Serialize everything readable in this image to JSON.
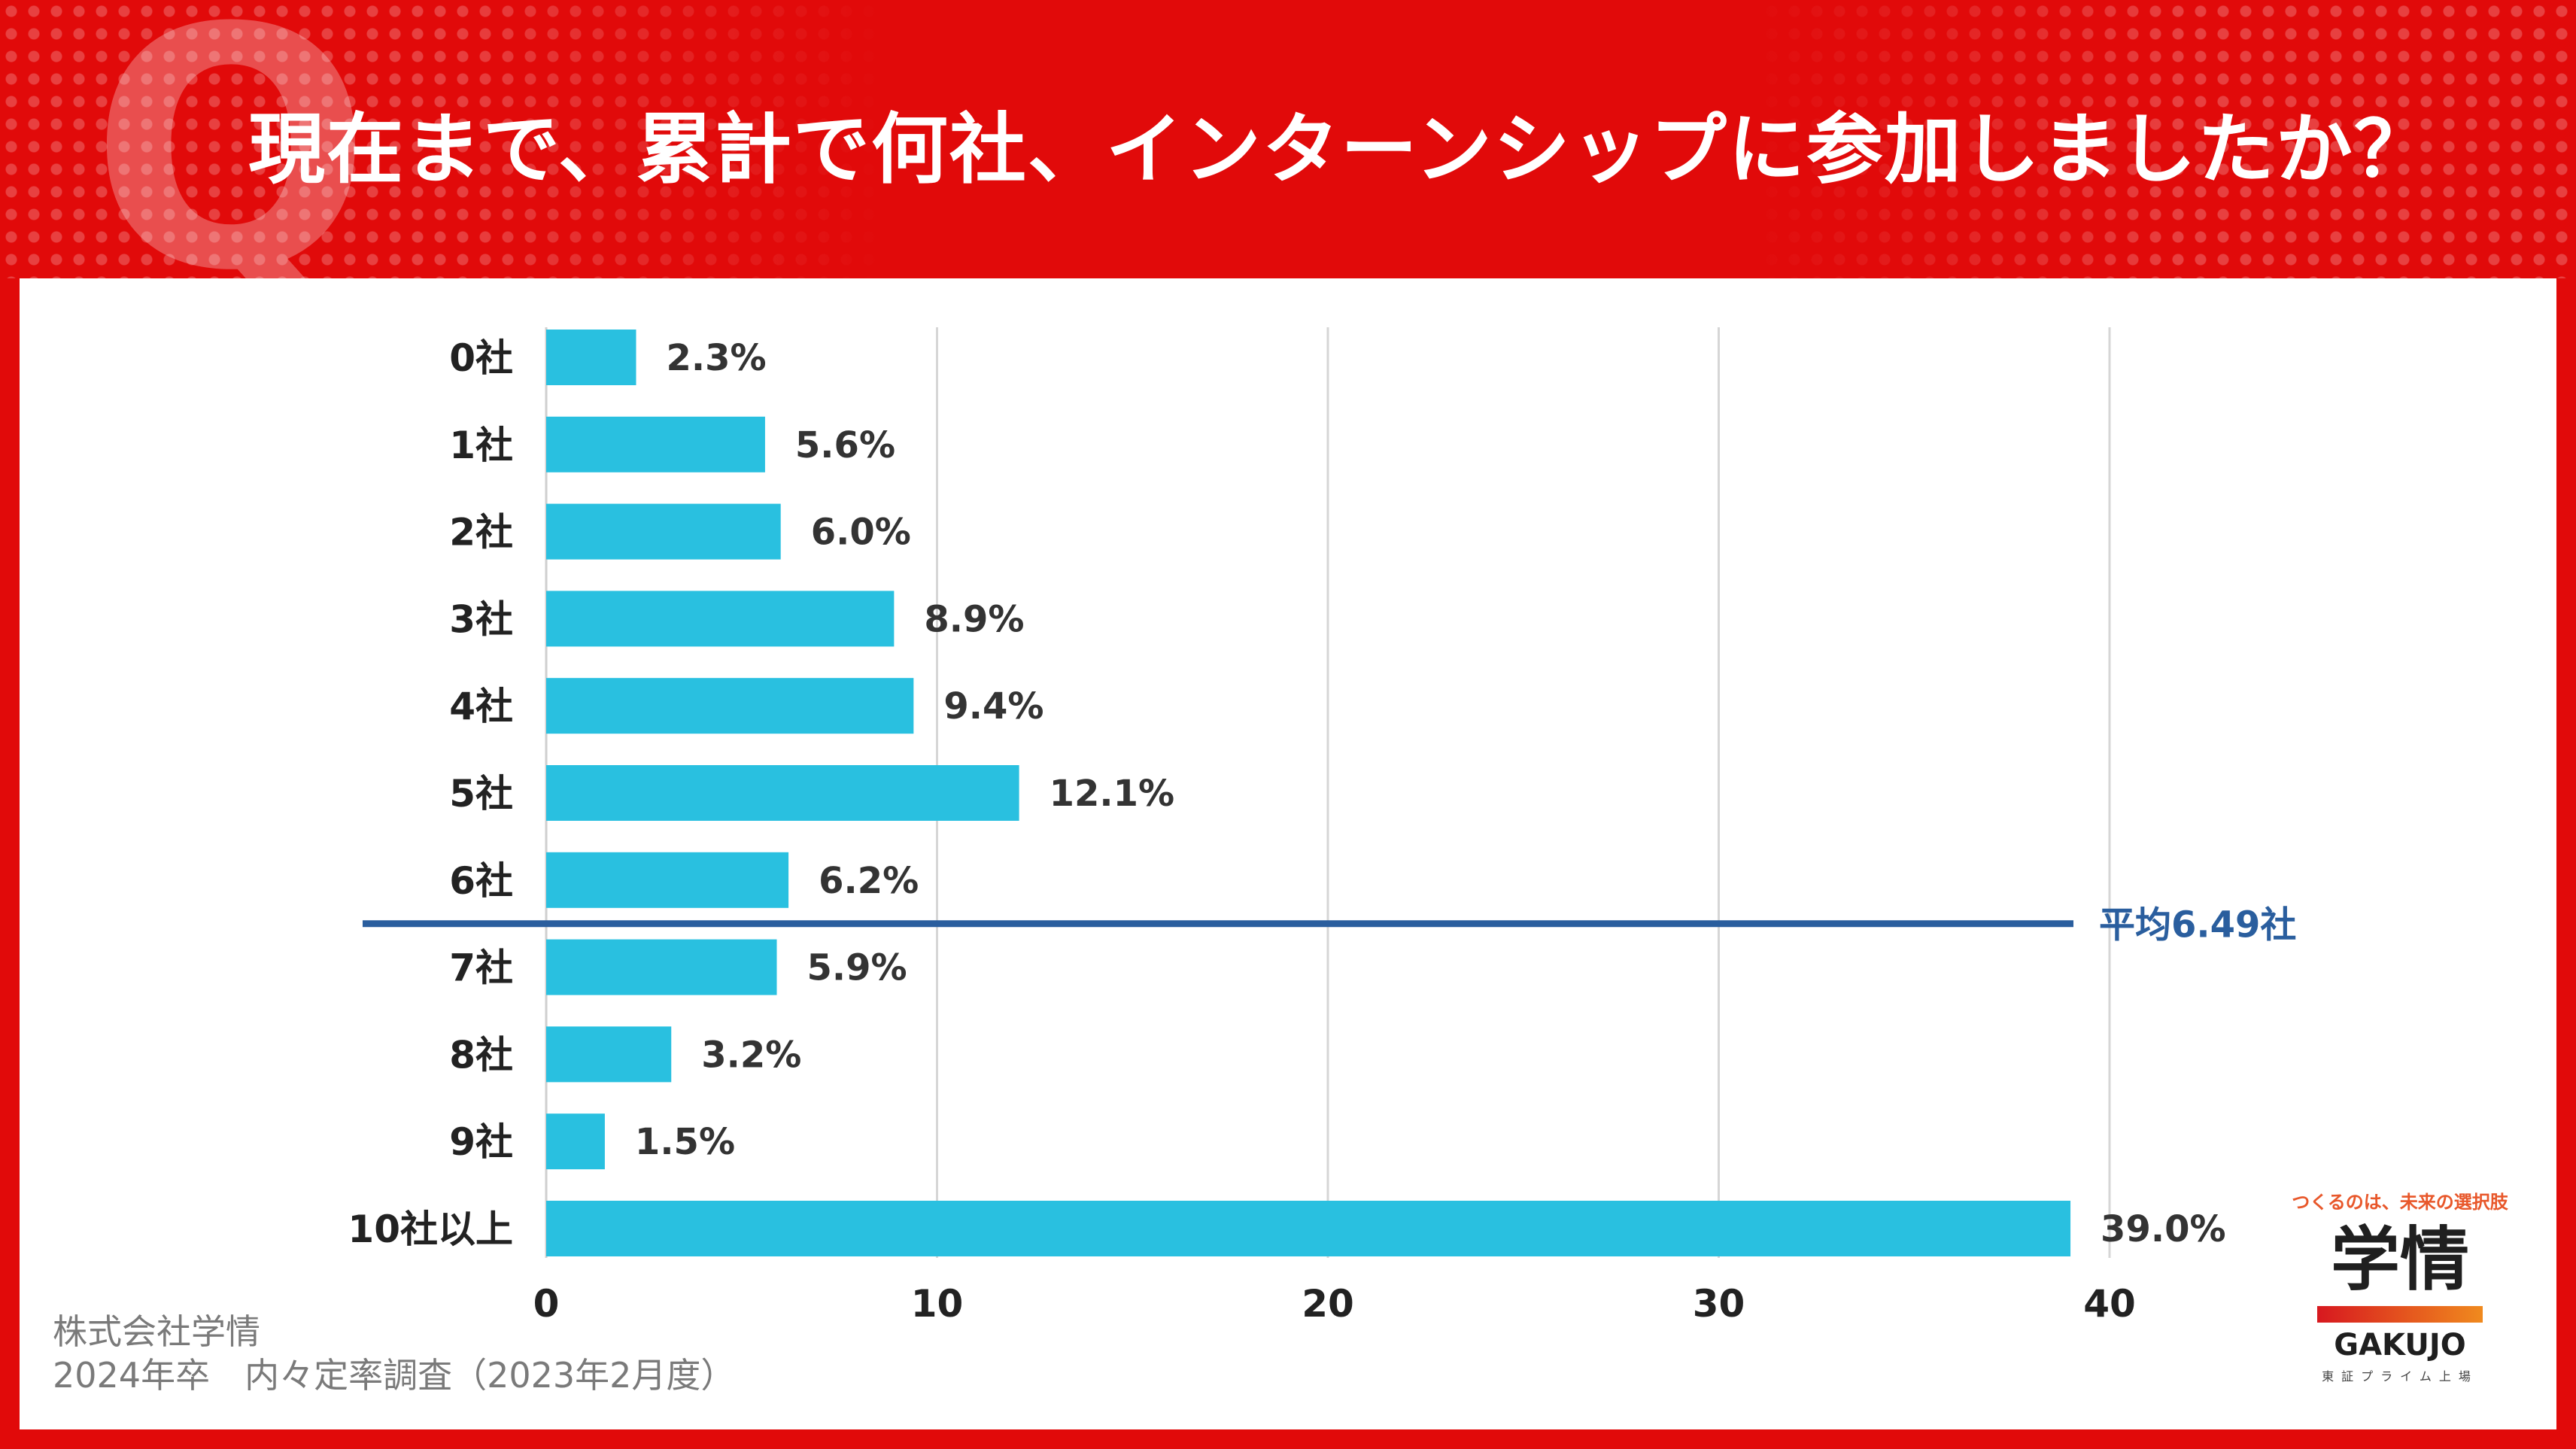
{
  "header": {
    "q_mark": "Q",
    "title": "現在まで、累計で何社、インターンシップに参加しましたか？"
  },
  "colors": {
    "background": "#e10a0a",
    "bar": "#29c0e0",
    "average_line": "#2a5e9e",
    "text": "#222222"
  },
  "chart_data": {
    "type": "bar",
    "orientation": "horizontal",
    "title": "現在まで、累計で何社、インターンシップに参加しましたか？",
    "categories": [
      "0社",
      "1社",
      "2社",
      "3社",
      "4社",
      "5社",
      "6社",
      "7社",
      "8社",
      "9社",
      "10社以上"
    ],
    "values": [
      2.3,
      5.6,
      6.0,
      8.9,
      9.4,
      12.1,
      6.2,
      5.9,
      3.2,
      1.5,
      39.0
    ],
    "value_labels": [
      "2.3%",
      "5.6%",
      "6.0%",
      "8.9%",
      "9.4%",
      "12.1%",
      "6.2%",
      "5.9%",
      "3.2%",
      "1.5%",
      "39.0%"
    ],
    "xlim": [
      0,
      40
    ],
    "xticks": [
      0,
      10,
      20,
      30,
      40
    ],
    "grid": true,
    "average": {
      "label": "平均6.49社",
      "between_categories": [
        "6社",
        "7社"
      ]
    }
  },
  "footer": {
    "company": "株式会社学情",
    "survey": "2024年卒　内々定率調査（2023年2月度）"
  },
  "logo": {
    "tagline": "つくるのは、未来の選択肢",
    "main": "学情",
    "english": "GAKUJO",
    "sub": "東証プライム上場"
  }
}
